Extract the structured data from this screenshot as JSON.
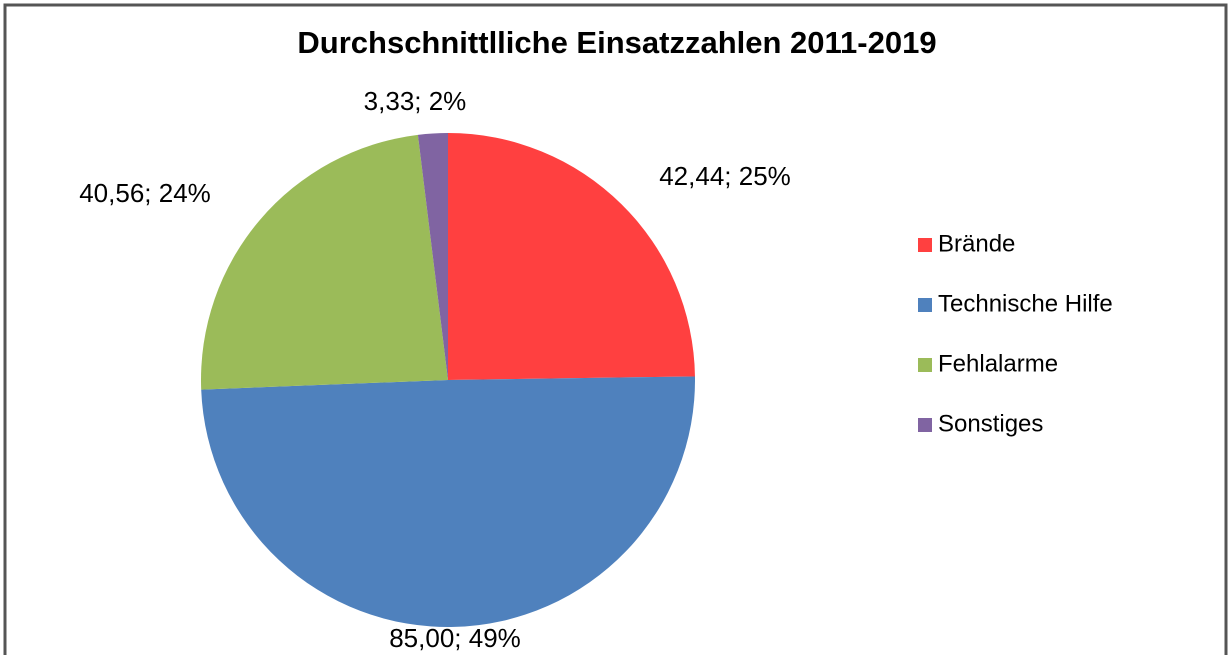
{
  "chart_data": {
    "type": "pie",
    "title": "Durchschnittlliche Einsatzzahlen 2011-2019",
    "categories": [
      "Brände",
      "Technische Hilfe",
      "Fehlalarme",
      "Sonstiges"
    ],
    "values": [
      42.44,
      85.0,
      40.56,
      3.33
    ],
    "value_labels": [
      "42,44; 25%",
      "85,00; 49%",
      "40,56; 24%",
      "3,33; 2%"
    ],
    "colors": [
      "#ff4040",
      "#4f81bd",
      "#9bbb59",
      "#8064a2"
    ],
    "legend": "right"
  }
}
